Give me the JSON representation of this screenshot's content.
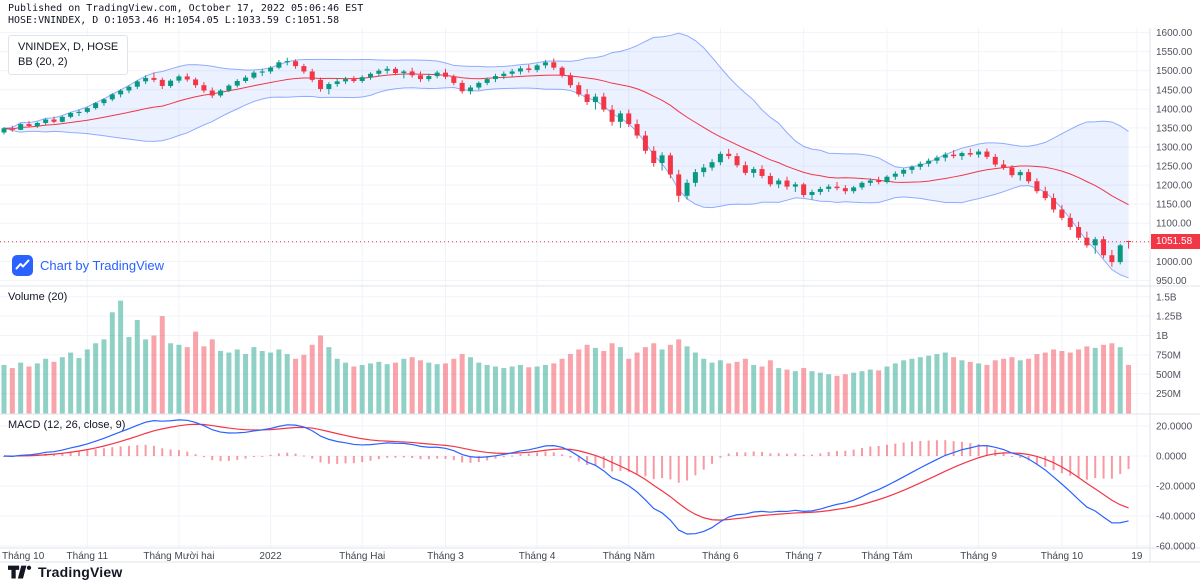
{
  "header": {
    "line1": "Published on TradingView.com, October 17, 2022 05:06:46 EST",
    "line2": "HOSE:VNINDEX, D O:1053.46 H:1054.05 L:1033.59 C:1051.58"
  },
  "legends": {
    "main_title": "VNINDEX, D, HOSE",
    "main_indicator": "BB (20, 2)",
    "volume": "Volume (20)",
    "macd": "MACD (12, 26, close, 9)"
  },
  "watermark": {
    "label": "Chart by TradingView"
  },
  "footer": {
    "brand": "TradingView"
  },
  "colors": {
    "up": "#089981",
    "down": "#f23645",
    "vol_up": "rgba(8,153,129,0.45)",
    "vol_down": "rgba(242,54,69,0.45)",
    "bb_line": "#2962ff",
    "bb_fill": "rgba(41,98,255,0.09)",
    "bb_basis": "#f23645",
    "macd_line": "#2962ff",
    "signal_line": "#f23645",
    "hist": "rgba(242,54,69,0.5)",
    "badge": "#f23645",
    "accent": "#2962ff",
    "grid": "#f0f3fa",
    "divider": "#e0e3eb",
    "axis_text": "#50535e",
    "time_text": "#434651"
  },
  "chart_data": {
    "type": "candlestick",
    "symbol": "VNINDEX",
    "exchange": "HOSE",
    "interval": "D",
    "ohlc_last": {
      "o": 1053.46,
      "h": 1054.05,
      "l": 1033.59,
      "c": 1051.58
    },
    "last_price_label": "1051.58",
    "indicators": {
      "bollinger": {
        "period": 20,
        "stddev": 2
      },
      "volume_ma": 20,
      "macd": {
        "fast": 12,
        "slow": 26,
        "source": "close",
        "signal": 9
      }
    },
    "axes": {
      "price_labels": [
        "1600.00",
        "1550.00",
        "1500.00",
        "1450.00",
        "1400.00",
        "1350.00",
        "1300.00",
        "1250.00",
        "1200.00",
        "1150.00",
        "1100.00",
        "1050.00",
        "1000.00",
        "950.00"
      ],
      "volume_labels": [
        "1.5B",
        "1.25B",
        "1B",
        "750M",
        "500M",
        "250M"
      ],
      "macd_labels": [
        "20.0000",
        "0.0000",
        "-20.0000",
        "-40.0000",
        "-60.0000"
      ],
      "time_ticks": [
        {
          "label": "Tháng 10",
          "i": 0
        },
        {
          "label": "Tháng 11",
          "i": 10
        },
        {
          "label": "Tháng Mười hai",
          "i": 21
        },
        {
          "label": "2022",
          "i": 32
        },
        {
          "label": "Tháng Hai",
          "i": 43
        },
        {
          "label": "Tháng 3",
          "i": 53
        },
        {
          "label": "Tháng 4",
          "i": 64
        },
        {
          "label": "Tháng Năm",
          "i": 75
        },
        {
          "label": "Tháng 6",
          "i": 86
        },
        {
          "label": "Tháng 7",
          "i": 96
        },
        {
          "label": "Tháng Tám",
          "i": 106
        },
        {
          "label": "Tháng 9",
          "i": 117
        },
        {
          "label": "Tháng 10",
          "i": 127
        },
        {
          "label": "19",
          "i": 136
        }
      ],
      "price_range": [
        938,
        1612
      ],
      "volume_range_millions": [
        0,
        1600
      ],
      "macd_range": [
        -61,
        28
      ]
    },
    "candles": [
      [
        1338,
        1352,
        1333,
        1349,
        620
      ],
      [
        1349,
        1356,
        1340,
        1345,
        580
      ],
      [
        1345,
        1362,
        1344,
        1360,
        650
      ],
      [
        1360,
        1368,
        1351,
        1355,
        600
      ],
      [
        1355,
        1366,
        1350,
        1363,
        640
      ],
      [
        1363,
        1375,
        1358,
        1372,
        700
      ],
      [
        1372,
        1380,
        1362,
        1366,
        660
      ],
      [
        1366,
        1382,
        1364,
        1379,
        720
      ],
      [
        1379,
        1392,
        1375,
        1389,
        780
      ],
      [
        1389,
        1398,
        1381,
        1392,
        710
      ],
      [
        1392,
        1405,
        1388,
        1402,
        820
      ],
      [
        1402,
        1418,
        1398,
        1415,
        900
      ],
      [
        1415,
        1428,
        1408,
        1425,
        950
      ],
      [
        1425,
        1441,
        1420,
        1438,
        1300
      ],
      [
        1438,
        1452,
        1430,
        1448,
        1450
      ],
      [
        1448,
        1462,
        1441,
        1458,
        980
      ],
      [
        1458,
        1476,
        1452,
        1472,
        1200
      ],
      [
        1472,
        1488,
        1465,
        1481,
        950
      ],
      [
        1481,
        1495,
        1470,
        1476,
        1000
      ],
      [
        1476,
        1482,
        1452,
        1460,
        1250
      ],
      [
        1460,
        1478,
        1455,
        1474,
        900
      ],
      [
        1474,
        1490,
        1468,
        1485,
        880
      ],
      [
        1485,
        1493,
        1471,
        1477,
        850
      ],
      [
        1477,
        1482,
        1455,
        1462,
        1050
      ],
      [
        1462,
        1470,
        1442,
        1448,
        860
      ],
      [
        1448,
        1456,
        1428,
        1435,
        950
      ],
      [
        1435,
        1452,
        1430,
        1448,
        800
      ],
      [
        1448,
        1465,
        1444,
        1461,
        780
      ],
      [
        1461,
        1478,
        1456,
        1473,
        820
      ],
      [
        1473,
        1488,
        1468,
        1482,
        760
      ],
      [
        1482,
        1500,
        1478,
        1495,
        850
      ],
      [
        1495,
        1505,
        1486,
        1498,
        800
      ],
      [
        1498,
        1512,
        1492,
        1508,
        780
      ],
      [
        1508,
        1528,
        1504,
        1522,
        820
      ],
      [
        1522,
        1534,
        1514,
        1525,
        760
      ],
      [
        1525,
        1530,
        1505,
        1512,
        700
      ],
      [
        1512,
        1518,
        1492,
        1498,
        750
      ],
      [
        1498,
        1505,
        1470,
        1476,
        880
      ],
      [
        1476,
        1482,
        1445,
        1452,
        1000
      ],
      [
        1452,
        1470,
        1438,
        1465,
        850
      ],
      [
        1465,
        1480,
        1458,
        1472,
        700
      ],
      [
        1472,
        1484,
        1465,
        1478,
        650
      ],
      [
        1478,
        1486,
        1468,
        1473,
        600
      ],
      [
        1473,
        1488,
        1468,
        1483,
        620
      ],
      [
        1483,
        1496,
        1476,
        1492,
        640
      ],
      [
        1492,
        1505,
        1485,
        1500,
        660
      ],
      [
        1500,
        1512,
        1492,
        1505,
        630
      ],
      [
        1505,
        1510,
        1488,
        1494,
        650
      ],
      [
        1494,
        1502,
        1480,
        1498,
        700
      ],
      [
        1498,
        1508,
        1482,
        1488,
        720
      ],
      [
        1488,
        1498,
        1470,
        1478,
        680
      ],
      [
        1478,
        1492,
        1472,
        1486,
        650
      ],
      [
        1486,
        1500,
        1480,
        1495,
        630
      ],
      [
        1495,
        1505,
        1478,
        1484,
        640
      ],
      [
        1484,
        1490,
        1462,
        1468,
        700
      ],
      [
        1468,
        1475,
        1440,
        1446,
        760
      ],
      [
        1446,
        1462,
        1438,
        1456,
        720
      ],
      [
        1456,
        1472,
        1450,
        1468,
        650
      ],
      [
        1468,
        1482,
        1462,
        1478,
        620
      ],
      [
        1478,
        1492,
        1470,
        1486,
        600
      ],
      [
        1486,
        1498,
        1478,
        1492,
        580
      ],
      [
        1492,
        1505,
        1484,
        1498,
        600
      ],
      [
        1498,
        1512,
        1490,
        1506,
        620
      ],
      [
        1506,
        1516,
        1495,
        1502,
        590
      ],
      [
        1502,
        1518,
        1496,
        1514,
        600
      ],
      [
        1514,
        1528,
        1506,
        1522,
        620
      ],
      [
        1522,
        1532,
        1502,
        1508,
        640
      ],
      [
        1508,
        1512,
        1482,
        1488,
        700
      ],
      [
        1488,
        1495,
        1455,
        1462,
        760
      ],
      [
        1462,
        1470,
        1432,
        1438,
        820
      ],
      [
        1438,
        1452,
        1410,
        1418,
        880
      ],
      [
        1418,
        1440,
        1398,
        1432,
        840
      ],
      [
        1432,
        1442,
        1392,
        1398,
        800
      ],
      [
        1398,
        1410,
        1356,
        1366,
        900
      ],
      [
        1366,
        1395,
        1350,
        1388,
        850
      ],
      [
        1388,
        1398,
        1352,
        1360,
        700
      ],
      [
        1360,
        1372,
        1322,
        1330,
        780
      ],
      [
        1330,
        1342,
        1282,
        1290,
        850
      ],
      [
        1290,
        1302,
        1248,
        1258,
        900
      ],
      [
        1258,
        1286,
        1238,
        1278,
        820
      ],
      [
        1278,
        1285,
        1218,
        1228,
        880
      ],
      [
        1228,
        1240,
        1156,
        1172,
        950
      ],
      [
        1172,
        1215,
        1162,
        1206,
        860
      ],
      [
        1206,
        1242,
        1196,
        1234,
        780
      ],
      [
        1234,
        1255,
        1222,
        1246,
        700
      ],
      [
        1246,
        1268,
        1238,
        1260,
        650
      ],
      [
        1260,
        1288,
        1252,
        1282,
        680
      ],
      [
        1282,
        1295,
        1268,
        1276,
        640
      ],
      [
        1276,
        1284,
        1246,
        1252,
        660
      ],
      [
        1252,
        1262,
        1226,
        1232,
        700
      ],
      [
        1232,
        1248,
        1220,
        1242,
        620
      ],
      [
        1242,
        1252,
        1218,
        1224,
        600
      ],
      [
        1224,
        1232,
        1196,
        1202,
        680
      ],
      [
        1202,
        1218,
        1192,
        1212,
        580
      ],
      [
        1212,
        1222,
        1188,
        1196,
        560
      ],
      [
        1196,
        1208,
        1182,
        1202,
        540
      ],
      [
        1202,
        1206,
        1168,
        1174,
        580
      ],
      [
        1174,
        1188,
        1162,
        1182,
        540
      ],
      [
        1182,
        1196,
        1174,
        1190,
        520
      ],
      [
        1190,
        1202,
        1182,
        1196,
        500
      ],
      [
        1196,
        1208,
        1186,
        1192,
        480
      ],
      [
        1192,
        1200,
        1176,
        1184,
        500
      ],
      [
        1184,
        1198,
        1178,
        1194,
        520
      ],
      [
        1194,
        1210,
        1188,
        1206,
        540
      ],
      [
        1206,
        1218,
        1198,
        1212,
        560
      ],
      [
        1212,
        1222,
        1202,
        1208,
        550
      ],
      [
        1208,
        1226,
        1204,
        1222,
        600
      ],
      [
        1222,
        1236,
        1214,
        1230,
        640
      ],
      [
        1230,
        1244,
        1222,
        1240,
        680
      ],
      [
        1240,
        1252,
        1230,
        1248,
        700
      ],
      [
        1248,
        1262,
        1240,
        1256,
        720
      ],
      [
        1256,
        1270,
        1248,
        1264,
        740
      ],
      [
        1264,
        1278,
        1256,
        1272,
        760
      ],
      [
        1272,
        1286,
        1262,
        1280,
        780
      ],
      [
        1280,
        1292,
        1270,
        1276,
        720
      ],
      [
        1276,
        1288,
        1266,
        1284,
        680
      ],
      [
        1284,
        1296,
        1274,
        1280,
        660
      ],
      [
        1280,
        1294,
        1272,
        1288,
        640
      ],
      [
        1288,
        1296,
        1268,
        1274,
        620
      ],
      [
        1274,
        1282,
        1248,
        1254,
        680
      ],
      [
        1254,
        1266,
        1240,
        1246,
        700
      ],
      [
        1246,
        1252,
        1220,
        1226,
        720
      ],
      [
        1226,
        1240,
        1212,
        1234,
        680
      ],
      [
        1234,
        1242,
        1204,
        1210,
        700
      ],
      [
        1210,
        1218,
        1178,
        1184,
        760
      ],
      [
        1184,
        1196,
        1160,
        1166,
        780
      ],
      [
        1166,
        1178,
        1128,
        1136,
        820
      ],
      [
        1136,
        1148,
        1108,
        1114,
        800
      ],
      [
        1114,
        1126,
        1082,
        1090,
        780
      ],
      [
        1090,
        1104,
        1056,
        1062,
        820
      ],
      [
        1062,
        1078,
        1036,
        1042,
        860
      ],
      [
        1042,
        1064,
        1020,
        1058,
        840
      ],
      [
        1058,
        1066,
        1008,
        1016,
        880
      ],
      [
        1016,
        1030,
        986,
        998,
        900
      ],
      [
        998,
        1046,
        992,
        1042,
        850
      ],
      [
        1053.46,
        1054.05,
        1033.59,
        1051.58,
        620
      ]
    ]
  }
}
